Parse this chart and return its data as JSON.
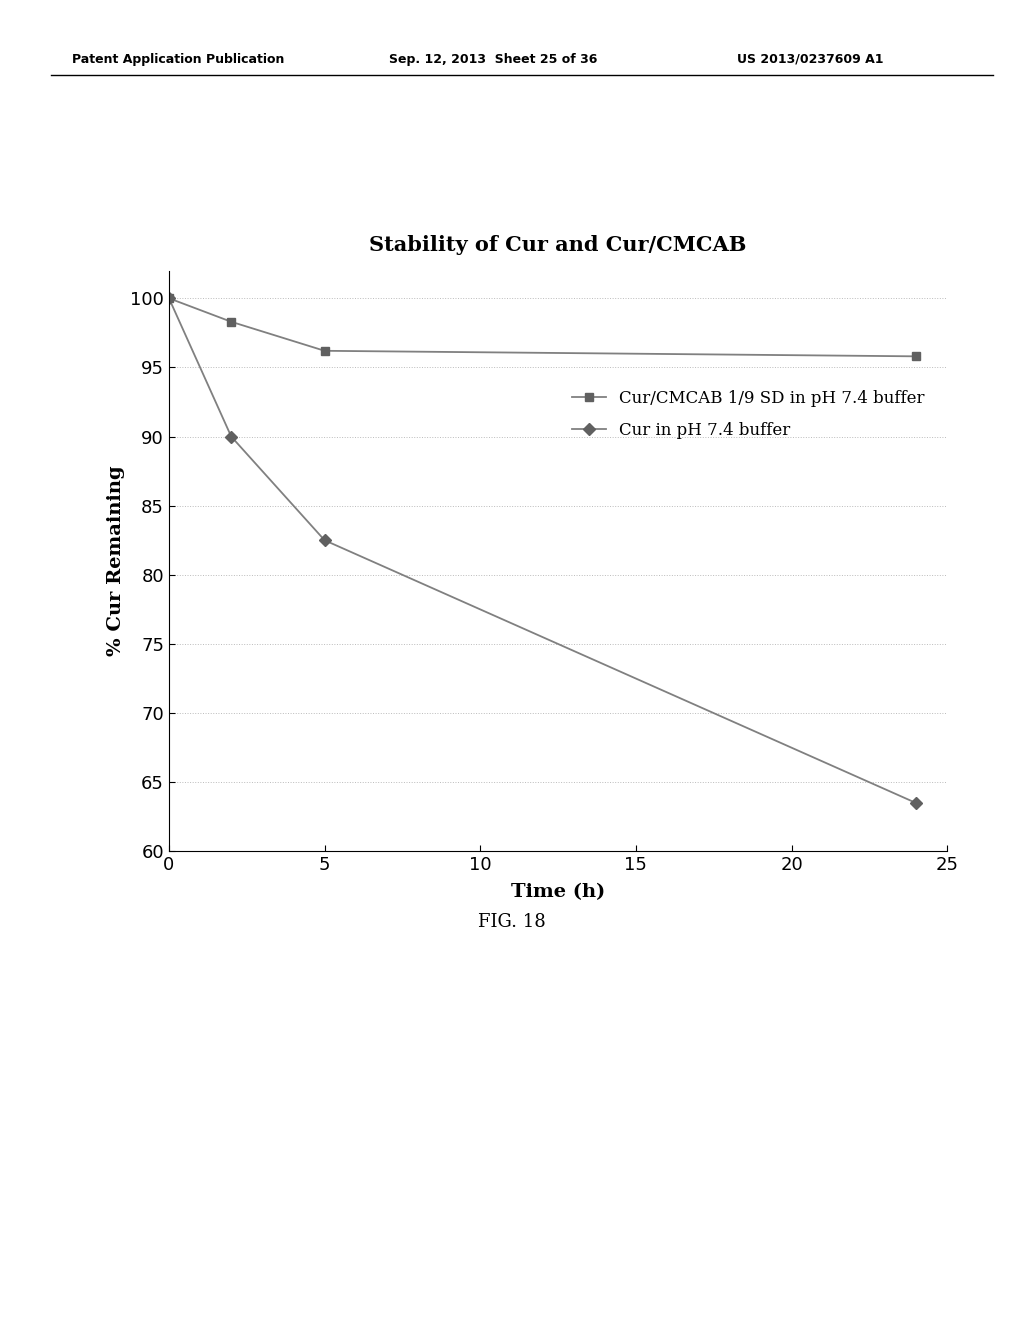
{
  "title": "Stability of Cur and Cur/CMCAB",
  "xlabel": "Time (h)",
  "ylabel": "% Cur Remaining",
  "xlim": [
    0,
    25
  ],
  "ylim": [
    60,
    102
  ],
  "yticks": [
    60,
    65,
    70,
    75,
    80,
    85,
    90,
    95,
    100
  ],
  "xticks": [
    0,
    5,
    10,
    15,
    20,
    25
  ],
  "series1_label": "Cur/CMCAB 1/9 SD in pH 7.4 buffer",
  "series1_x": [
    0,
    2,
    5,
    24
  ],
  "series1_y": [
    100,
    98.3,
    96.2,
    95.8
  ],
  "series2_label": "Cur in pH 7.4 buffer",
  "series2_x": [
    0,
    2,
    5,
    24
  ],
  "series2_y": [
    100,
    90.0,
    82.5,
    63.5
  ],
  "line_color": "#808080",
  "marker_color": "#606060",
  "background_color": "#ffffff",
  "grid_color": "#bbbbbb",
  "title_fontsize": 15,
  "axis_label_fontsize": 14,
  "tick_fontsize": 13,
  "legend_fontsize": 12,
  "header_left": "Patent Application Publication",
  "header_mid": "Sep. 12, 2013  Sheet 25 of 36",
  "header_right": "US 2013/0237609 A1",
  "fig_label": "FIG. 18",
  "header_fontsize": 9,
  "fig_label_fontsize": 13
}
